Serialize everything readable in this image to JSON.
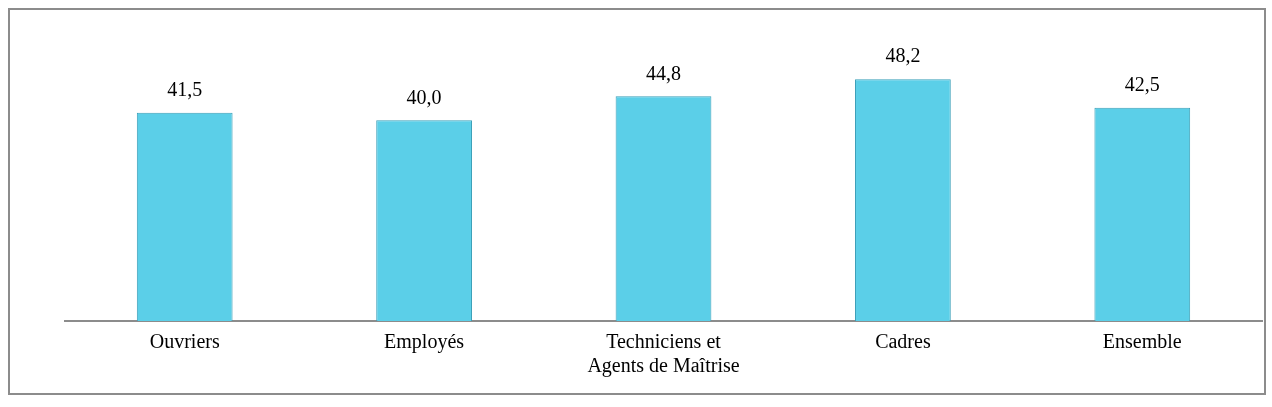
{
  "chart_data": {
    "type": "bar",
    "categories": [
      "Ouvriers",
      "Employés",
      "Techniciens et Agents de Maîtrise",
      "Cadres",
      "Ensemble"
    ],
    "values": [
      41.5,
      40.0,
      44.8,
      48.2,
      42.5
    ],
    "color": "#5bcfe8",
    "value_labels": [
      "41,5",
      "40,0",
      "44,8",
      "48,2",
      "42,5"
    ],
    "legend": false,
    "grid": false
  }
}
